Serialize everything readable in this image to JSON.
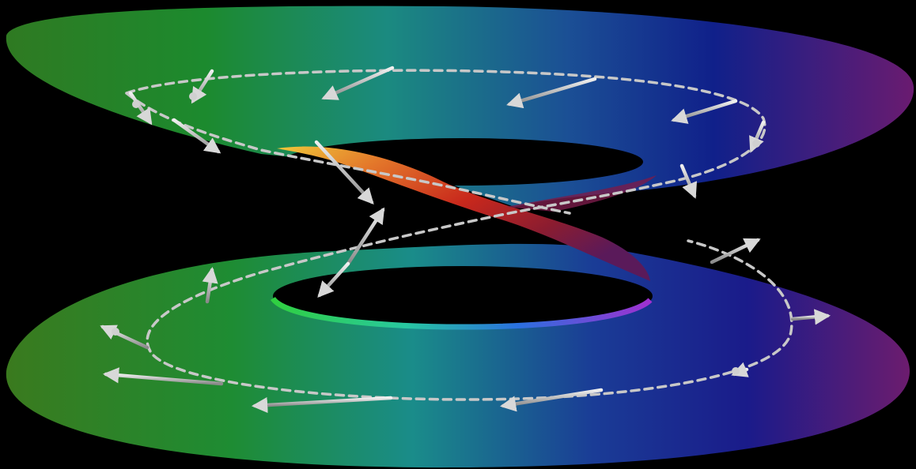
{
  "scene": {
    "background": "#000000",
    "subject": "twisted-ribbon-surface-with-tangent-vector-field",
    "colors": {
      "green": "#1c8a2e",
      "teal": "#1b8a80",
      "blue": "#10208a",
      "purple": "#6a1b70",
      "red": "#c8281c",
      "orange": "#e3762a",
      "yellow": "#f0c83a",
      "arrow": "#c8c8c8",
      "dashed_path": "#c8c8c8"
    },
    "arrow_count": 22
  }
}
